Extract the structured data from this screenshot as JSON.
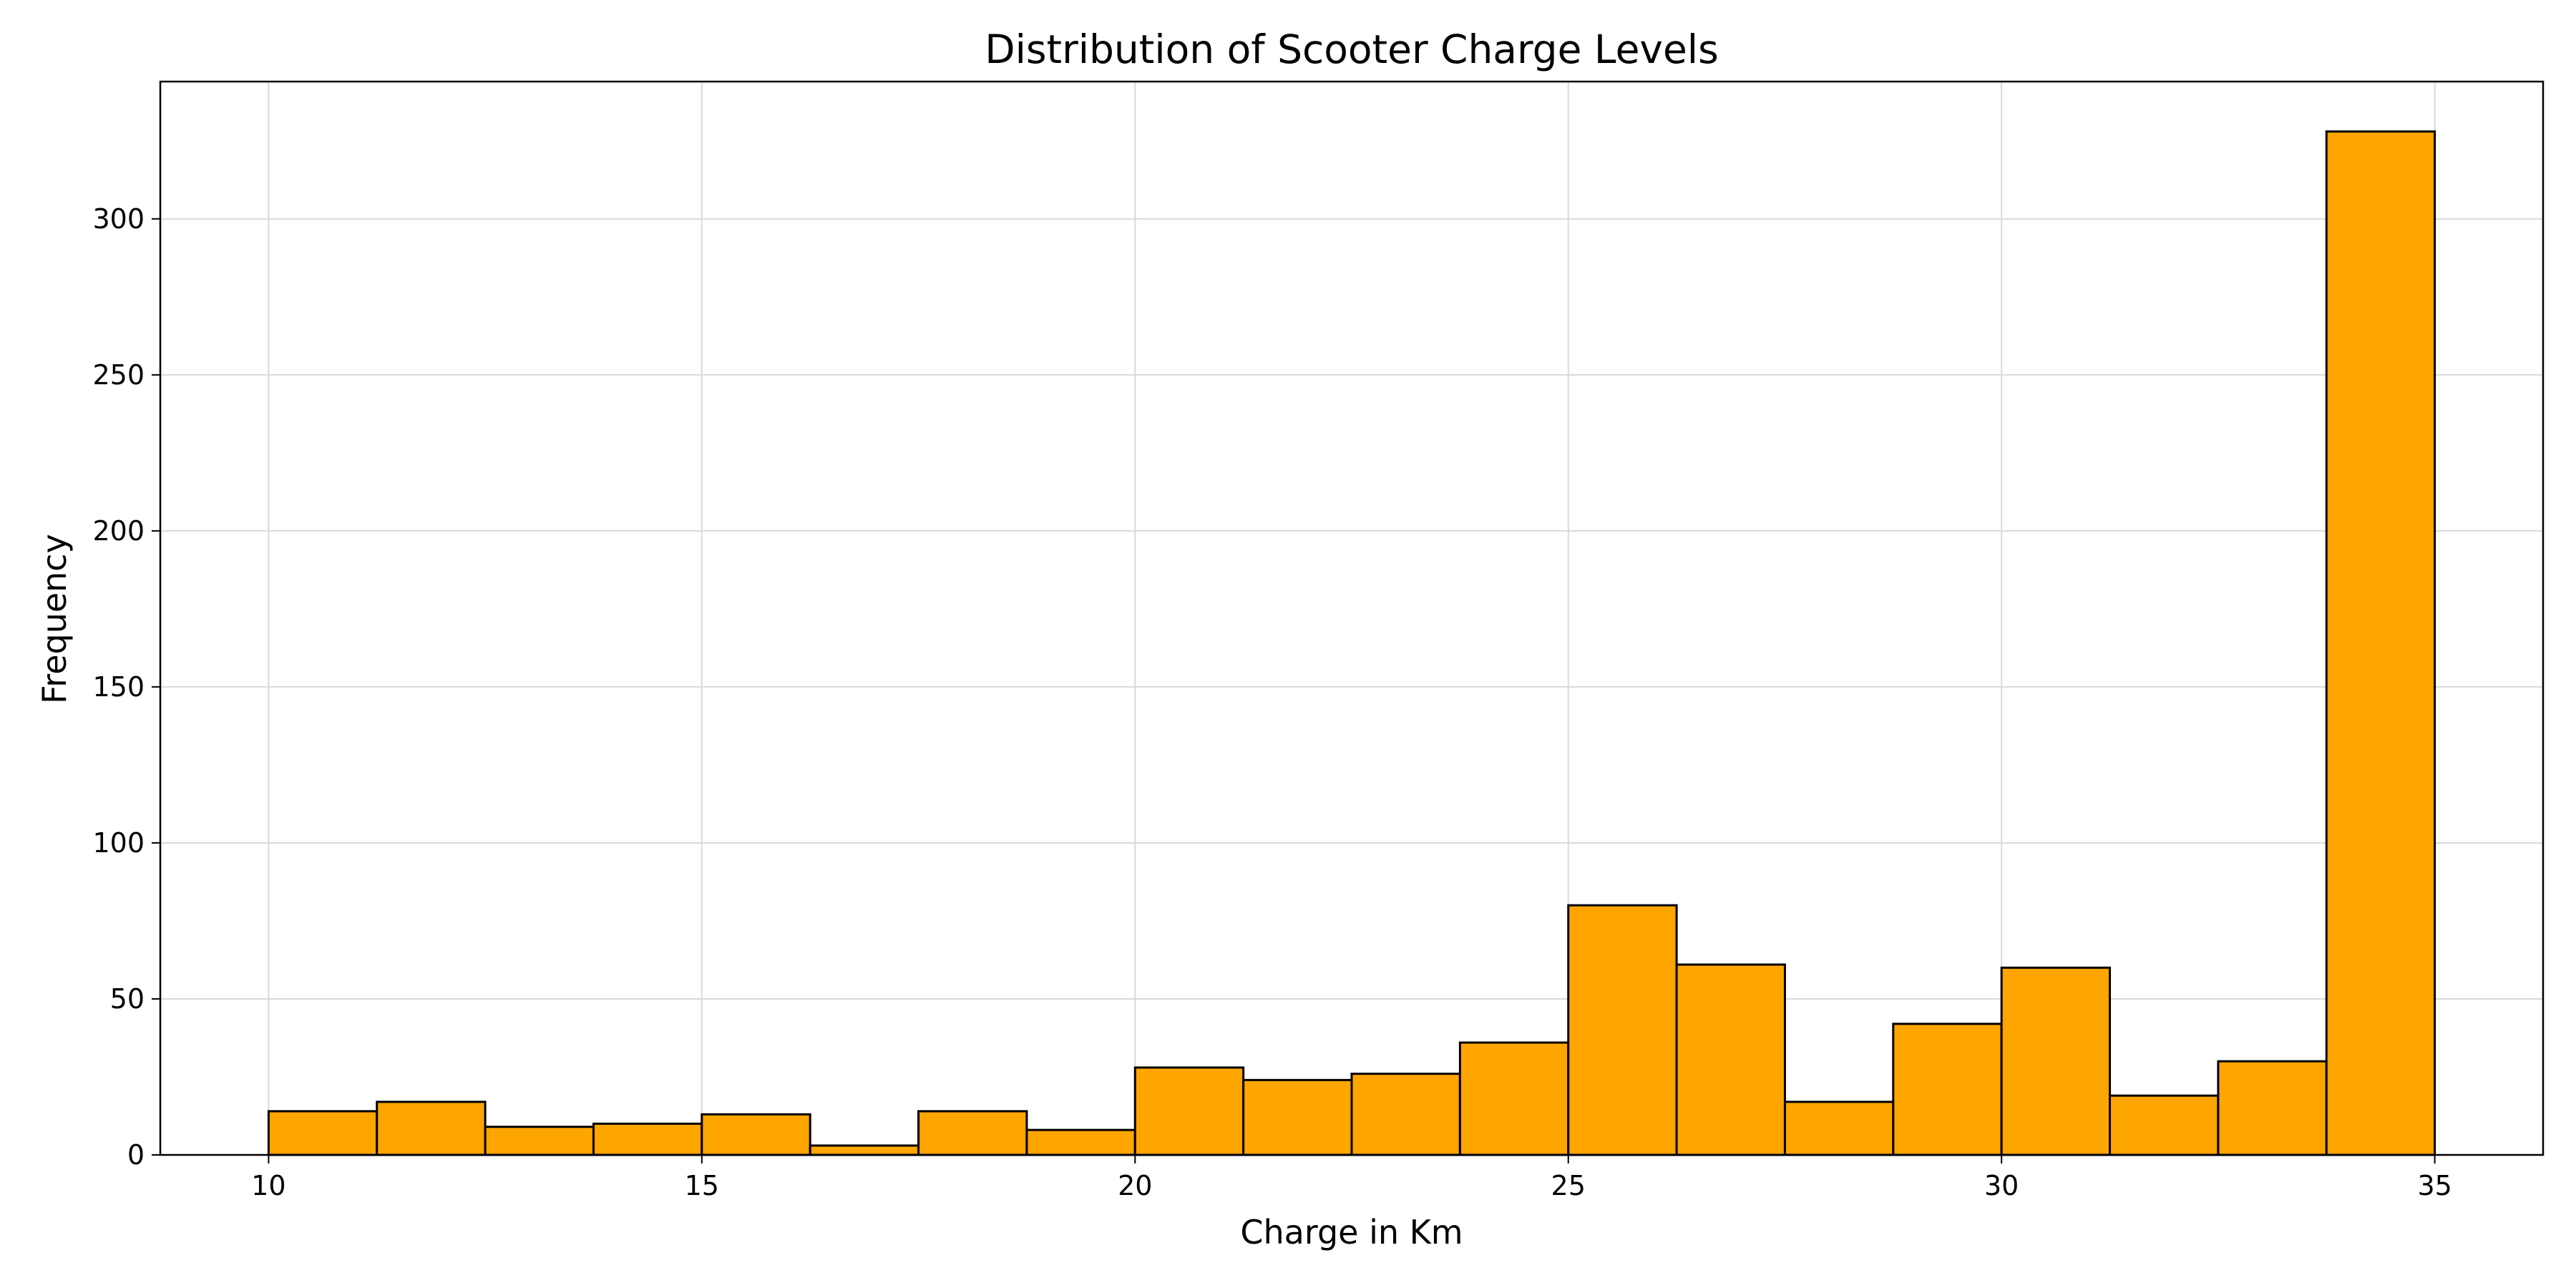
{
  "chart_data": {
    "type": "bar",
    "title": "Distribution of Scooter Charge Levels",
    "xlabel": "Charge in Km",
    "ylabel": "Frequency",
    "xlim": [
      8.75,
      36.25
    ],
    "ylim": [
      0,
      344
    ],
    "xticks": [
      10,
      15,
      20,
      25,
      30,
      35
    ],
    "yticks": [
      0,
      50,
      100,
      150,
      200,
      250,
      300
    ],
    "grid": true,
    "bar_color": "#FFA500",
    "edge_color": "#000000",
    "bins": [
      {
        "start": 10.0,
        "end": 11.25,
        "value": 14
      },
      {
        "start": 11.25,
        "end": 12.5,
        "value": 17
      },
      {
        "start": 12.5,
        "end": 13.75,
        "value": 9
      },
      {
        "start": 13.75,
        "end": 15.0,
        "value": 10
      },
      {
        "start": 15.0,
        "end": 16.25,
        "value": 13
      },
      {
        "start": 16.25,
        "end": 17.5,
        "value": 3
      },
      {
        "start": 17.5,
        "end": 18.75,
        "value": 14
      },
      {
        "start": 18.75,
        "end": 20.0,
        "value": 8
      },
      {
        "start": 20.0,
        "end": 21.25,
        "value": 28
      },
      {
        "start": 21.25,
        "end": 22.5,
        "value": 24
      },
      {
        "start": 22.5,
        "end": 23.75,
        "value": 26
      },
      {
        "start": 23.75,
        "end": 25.0,
        "value": 36
      },
      {
        "start": 25.0,
        "end": 26.25,
        "value": 80
      },
      {
        "start": 26.25,
        "end": 27.5,
        "value": 61
      },
      {
        "start": 27.5,
        "end": 28.75,
        "value": 17
      },
      {
        "start": 28.75,
        "end": 30.0,
        "value": 42
      },
      {
        "start": 30.0,
        "end": 31.25,
        "value": 60
      },
      {
        "start": 31.25,
        "end": 32.5,
        "value": 19
      },
      {
        "start": 32.5,
        "end": 33.75,
        "value": 30
      },
      {
        "start": 33.75,
        "end": 35.0,
        "value": 328
      }
    ]
  }
}
